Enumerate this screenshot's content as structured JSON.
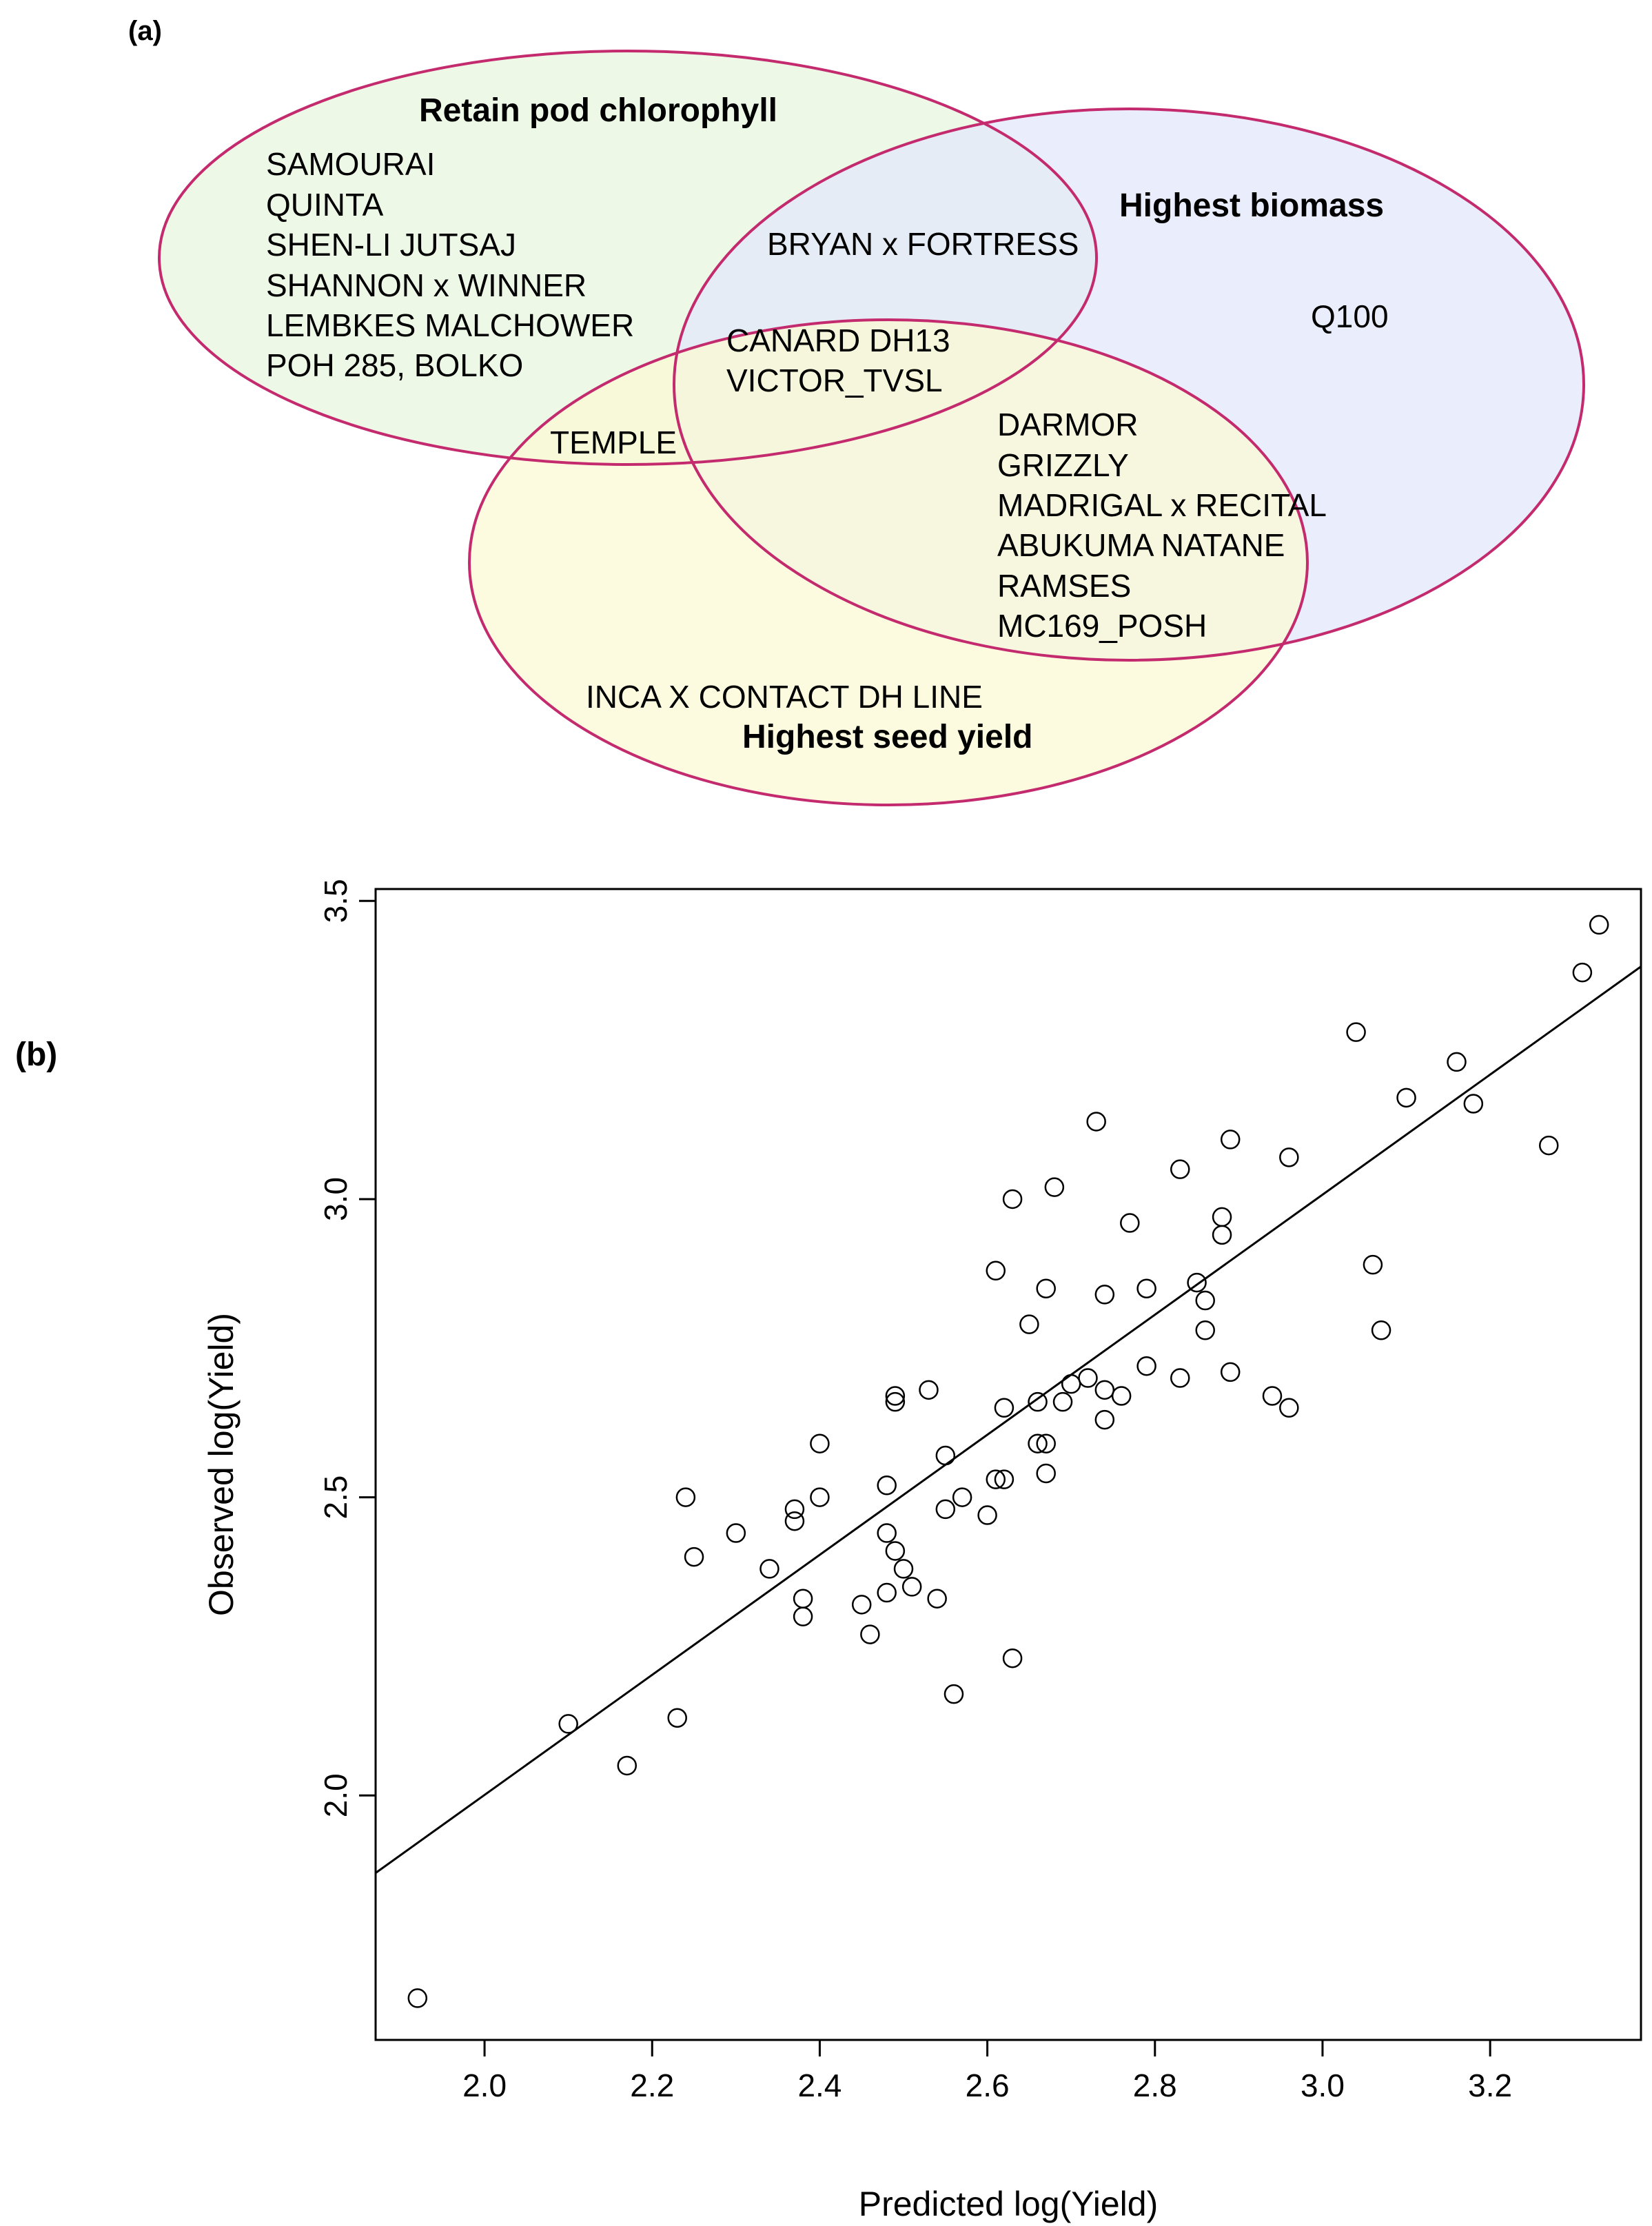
{
  "panel_a": {
    "label": "(a)",
    "colors": {
      "chlorophyll_fill": "#e6f5dc",
      "biomass_fill": "#e2e8fb",
      "seed_fill": "#fcfad2",
      "outline": "#c42a6e"
    },
    "sets": {
      "chlorophyll": "Retain pod chlorophyll",
      "biomass": "Highest biomass",
      "seed": "Highest seed yield"
    },
    "only_chlorophyll": [
      "SAMOURAI",
      "QUINTA",
      "SHEN-LI JUTSAJ",
      "SHANNON x WINNER",
      "LEMBKES MALCHOWER",
      "POH 285, BOLKO"
    ],
    "chlorophyll_biomass": [
      "BRYAN x FORTRESS"
    ],
    "all_three": [
      "CANARD DH13",
      "VICTOR_TVSL"
    ],
    "only_biomass": [
      "Q100"
    ],
    "chlorophyll_seed": [
      "TEMPLE"
    ],
    "biomass_seed": [
      "DARMOR",
      "GRIZZLY",
      "MADRIGAL x RECITAL",
      "ABUKUMA NATANE",
      "RAMSES",
      "MC169_POSH"
    ],
    "only_seed": [
      "INCA X CONTACT DH LINE"
    ]
  },
  "panel_b": {
    "label": "(b)"
  },
  "chart_data": {
    "type": "scatter",
    "title": "",
    "xlabel": "Predicted log(Yield)",
    "ylabel": "Observed log(Yield)",
    "xlim": [
      1.87,
      3.38
    ],
    "ylim": [
      1.59,
      3.52
    ],
    "xticks": [
      "2.0",
      "2.2",
      "2.4",
      "2.6",
      "2.8",
      "3.0",
      "3.2"
    ],
    "yticks": [
      "2.0",
      "2.5",
      "3.0",
      "3.5"
    ],
    "fit_line": {
      "x": [
        1.87,
        3.38
      ],
      "y": [
        1.87,
        3.39
      ]
    },
    "points": [
      [
        1.92,
        1.66
      ],
      [
        2.1,
        2.12
      ],
      [
        2.17,
        2.05
      ],
      [
        2.23,
        2.13
      ],
      [
        2.24,
        2.5
      ],
      [
        2.25,
        2.4
      ],
      [
        2.3,
        2.44
      ],
      [
        2.34,
        2.38
      ],
      [
        2.37,
        2.48
      ],
      [
        2.37,
        2.46
      ],
      [
        2.38,
        2.33
      ],
      [
        2.38,
        2.3
      ],
      [
        2.4,
        2.59
      ],
      [
        2.4,
        2.5
      ],
      [
        2.45,
        2.32
      ],
      [
        2.46,
        2.27
      ],
      [
        2.48,
        2.34
      ],
      [
        2.48,
        2.52
      ],
      [
        2.48,
        2.44
      ],
      [
        2.49,
        2.41
      ],
      [
        2.49,
        2.67
      ],
      [
        2.49,
        2.66
      ],
      [
        2.5,
        2.38
      ],
      [
        2.51,
        2.35
      ],
      [
        2.53,
        2.68
      ],
      [
        2.54,
        2.33
      ],
      [
        2.55,
        2.57
      ],
      [
        2.55,
        2.48
      ],
      [
        2.56,
        2.17
      ],
      [
        2.57,
        2.5
      ],
      [
        2.6,
        2.47
      ],
      [
        2.61,
        2.88
      ],
      [
        2.61,
        2.53
      ],
      [
        2.62,
        2.65
      ],
      [
        2.62,
        2.53
      ],
      [
        2.63,
        3.0
      ],
      [
        2.63,
        2.23
      ],
      [
        2.65,
        2.79
      ],
      [
        2.66,
        2.66
      ],
      [
        2.66,
        2.59
      ],
      [
        2.67,
        2.85
      ],
      [
        2.67,
        2.54
      ],
      [
        2.67,
        2.59
      ],
      [
        2.68,
        3.02
      ],
      [
        2.69,
        2.66
      ],
      [
        2.7,
        2.69
      ],
      [
        2.72,
        2.7
      ],
      [
        2.73,
        3.13
      ],
      [
        2.74,
        2.84
      ],
      [
        2.74,
        2.68
      ],
      [
        2.74,
        2.63
      ],
      [
        2.76,
        2.67
      ],
      [
        2.77,
        2.96
      ],
      [
        2.79,
        2.85
      ],
      [
        2.79,
        2.72
      ],
      [
        2.83,
        3.05
      ],
      [
        2.83,
        2.7
      ],
      [
        2.85,
        2.86
      ],
      [
        2.86,
        2.83
      ],
      [
        2.86,
        2.78
      ],
      [
        2.88,
        2.97
      ],
      [
        2.88,
        2.94
      ],
      [
        2.89,
        3.1
      ],
      [
        2.89,
        2.71
      ],
      [
        2.94,
        2.67
      ],
      [
        2.96,
        3.07
      ],
      [
        2.96,
        2.65
      ],
      [
        3.04,
        3.28
      ],
      [
        3.06,
        2.89
      ],
      [
        3.07,
        2.78
      ],
      [
        3.1,
        3.17
      ],
      [
        3.16,
        3.23
      ],
      [
        3.18,
        3.16
      ],
      [
        3.27,
        3.09
      ],
      [
        3.31,
        3.38
      ],
      [
        3.33,
        3.46
      ]
    ]
  }
}
